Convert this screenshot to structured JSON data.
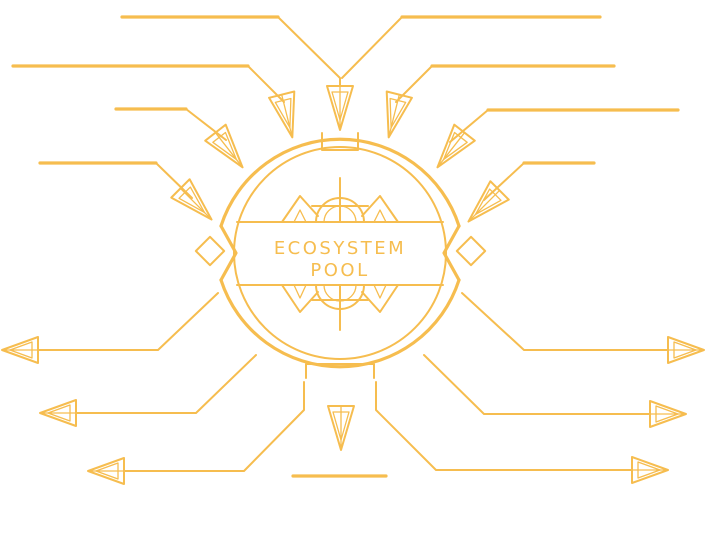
{
  "center": {
    "title_line1": "ECOSYSTEM",
    "title_line2": "POOL"
  },
  "colors": {
    "stroke": "#f6bd4f",
    "background": "#ffffff"
  },
  "inputs": [
    {
      "name": "input-arrow-1",
      "label": ""
    },
    {
      "name": "input-arrow-2",
      "label": ""
    },
    {
      "name": "input-arrow-3",
      "label": ""
    },
    {
      "name": "input-arrow-4",
      "label": ""
    },
    {
      "name": "input-arrow-5",
      "label": ""
    },
    {
      "name": "input-arrow-6",
      "label": ""
    },
    {
      "name": "input-arrow-7",
      "label": ""
    },
    {
      "name": "input-arrow-8",
      "label": ""
    }
  ],
  "outputs": [
    {
      "name": "output-arrow-1",
      "label": ""
    },
    {
      "name": "output-arrow-2",
      "label": ""
    },
    {
      "name": "output-arrow-3",
      "label": ""
    },
    {
      "name": "output-arrow-4",
      "label": ""
    },
    {
      "name": "output-arrow-5",
      "label": ""
    },
    {
      "name": "output-arrow-6",
      "label": ""
    },
    {
      "name": "output-arrow-7",
      "label": ""
    }
  ]
}
